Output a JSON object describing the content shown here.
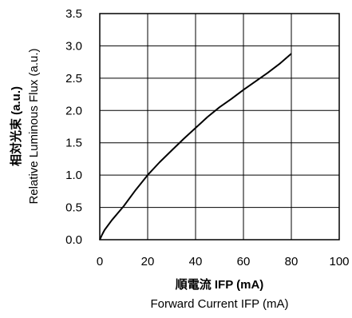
{
  "chart_data": {
    "type": "line",
    "xlabel": "Forward Current IFP (mA)",
    "xlabel_ja": "順電流 IFP (mA)",
    "ylabel": "Relative Luminous Flux (a.u.)",
    "ylabel_ja": "相対光束 (a.u.)",
    "xlim": [
      0,
      100
    ],
    "ylim": [
      0,
      3.5
    ],
    "x_ticks": [
      "0",
      "20",
      "40",
      "60",
      "80",
      "100"
    ],
    "y_ticks": [
      "0.0",
      "0.5",
      "1.0",
      "1.5",
      "2.0",
      "2.5",
      "3.0",
      "3.5"
    ],
    "grid": true,
    "series": [
      {
        "color": "#000000",
        "x": [
          0,
          1,
          2,
          5,
          10,
          15,
          20,
          25,
          30,
          35,
          40,
          45,
          50,
          55,
          60,
          65,
          70,
          75,
          80
        ],
        "y": [
          0,
          0.08,
          0.15,
          0.3,
          0.52,
          0.77,
          1.0,
          1.2,
          1.38,
          1.56,
          1.73,
          1.9,
          2.05,
          2.18,
          2.32,
          2.45,
          2.58,
          2.72,
          2.88
        ]
      }
    ]
  }
}
